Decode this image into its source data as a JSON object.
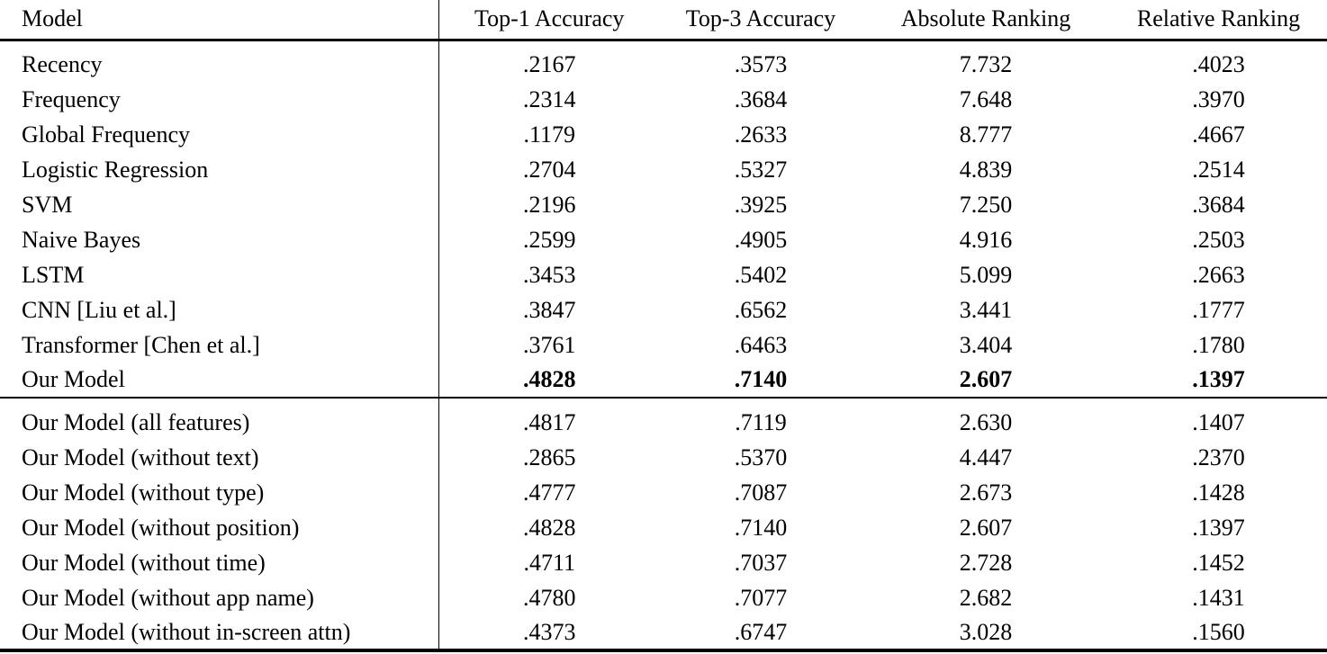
{
  "table": {
    "columns": [
      "Model",
      "Top-1 Accuracy",
      "Top-3 Accuracy",
      "Absolute Ranking",
      "Relative Ranking"
    ],
    "sections": [
      {
        "rows": [
          {
            "model": "Recency",
            "top1": ".2167",
            "top3": ".3573",
            "abs": "7.732",
            "rel": ".4023",
            "bold": false
          },
          {
            "model": "Frequency",
            "top1": ".2314",
            "top3": ".3684",
            "abs": "7.648",
            "rel": ".3970",
            "bold": false
          },
          {
            "model": "Global Frequency",
            "top1": ".1179",
            "top3": ".2633",
            "abs": "8.777",
            "rel": ".4667",
            "bold": false
          },
          {
            "model": "Logistic Regression",
            "top1": ".2704",
            "top3": ".5327",
            "abs": "4.839",
            "rel": ".2514",
            "bold": false
          },
          {
            "model": "SVM",
            "top1": ".2196",
            "top3": ".3925",
            "abs": "7.250",
            "rel": ".3684",
            "bold": false
          },
          {
            "model": "Naive Bayes",
            "top1": ".2599",
            "top3": ".4905",
            "abs": "4.916",
            "rel": ".2503",
            "bold": false
          },
          {
            "model": "LSTM",
            "top1": ".3453",
            "top3": ".5402",
            "abs": "5.099",
            "rel": ".2663",
            "bold": false
          },
          {
            "model": "CNN [Liu et al.]",
            "top1": ".3847",
            "top3": ".6562",
            "abs": "3.441",
            "rel": ".1777",
            "bold": false
          },
          {
            "model": "Transformer [Chen et al.]",
            "top1": ".3761",
            "top3": ".6463",
            "abs": "3.404",
            "rel": ".1780",
            "bold": false
          },
          {
            "model": "Our Model",
            "top1": ".4828",
            "top3": ".7140",
            "abs": "2.607",
            "rel": ".1397",
            "bold": true
          }
        ]
      },
      {
        "rows": [
          {
            "model": "Our Model (all features)",
            "top1": ".4817",
            "top3": ".7119",
            "abs": "2.630",
            "rel": ".1407",
            "bold": false
          },
          {
            "model": "Our Model (without text)",
            "top1": ".2865",
            "top3": ".5370",
            "abs": "4.447",
            "rel": ".2370",
            "bold": false
          },
          {
            "model": "Our Model (without type)",
            "top1": ".4777",
            "top3": ".7087",
            "abs": "2.673",
            "rel": ".1428",
            "bold": false
          },
          {
            "model": "Our Model (without position)",
            "top1": ".4828",
            "top3": ".7140",
            "abs": "2.607",
            "rel": ".1397",
            "bold": false
          },
          {
            "model": "Our Model (without time)",
            "top1": ".4711",
            "top3": ".7037",
            "abs": "2.728",
            "rel": ".1452",
            "bold": false
          },
          {
            "model": "Our Model (without app name)",
            "top1": ".4780",
            "top3": ".7077",
            "abs": "2.682",
            "rel": ".1431",
            "bold": false
          },
          {
            "model": "Our Model (without in-screen attn)",
            "top1": ".4373",
            "top3": ".6747",
            "abs": "3.028",
            "rel": ".1560",
            "bold": false
          }
        ]
      }
    ]
  }
}
